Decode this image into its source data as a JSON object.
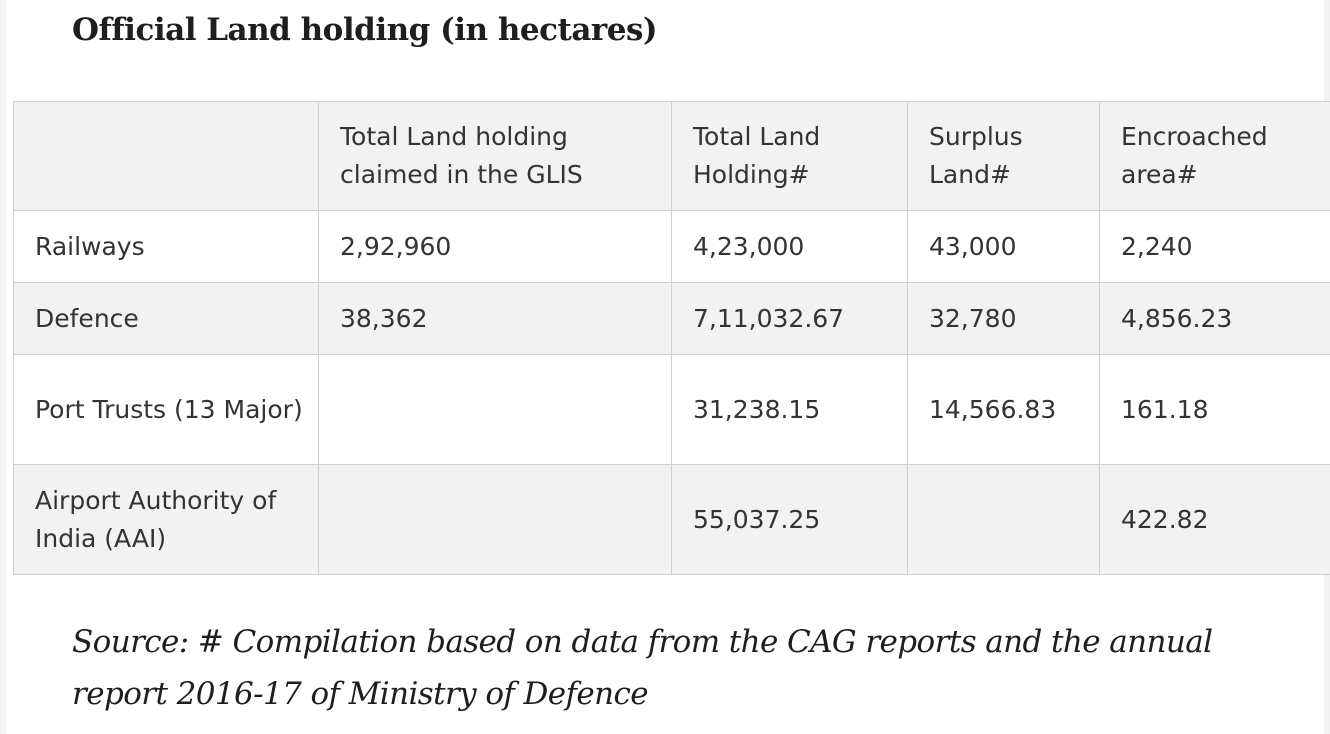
{
  "title": "Official Land holding (in hectares)",
  "table": {
    "headers": [
      "",
      "Total Land holding claimed in the GLIS",
      "Total Land Holding#",
      "Surplus Land#",
      "Encroached area#"
    ],
    "rows": [
      [
        "Railways",
        "2,92,960",
        "4,23,000",
        "43,000",
        "2,240"
      ],
      [
        "Defence",
        "38,362",
        "7,11,032.67",
        "32,780",
        "4,856.23"
      ],
      [
        "Port Trusts (13 Major)",
        "",
        "31,238.15",
        "14,566.83",
        "161.18"
      ],
      [
        "Airport Authority of India (AAI)",
        "",
        "55,037.25",
        "",
        "422.82"
      ]
    ]
  },
  "source": "Source: # Compilation based on data from the CAG reports and the annual report 2016-17 of Ministry of Defence",
  "colors": {
    "row_shade": "#f2f2f2",
    "border": "#cfcfcf",
    "text": "#333333"
  }
}
